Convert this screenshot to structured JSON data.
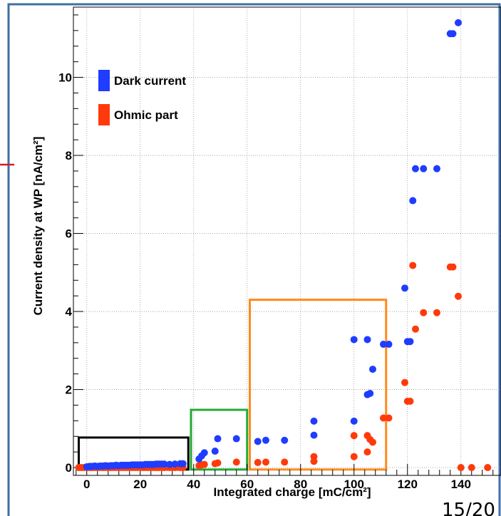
{
  "slide": {
    "page_number": "15/20"
  },
  "colors": {
    "frame": "#3f6fa3",
    "dark_current": "#1f3cff",
    "ohmic": "#ff3a0a",
    "red_line": "#d0202a",
    "black_box": "#000000",
    "green_box": "#22aa33",
    "orange_box": "#ff8a1c"
  },
  "chart_data": {
    "type": "scatter",
    "title": "",
    "xlabel": "Integrated charge [mC/cm²]",
    "ylabel": "Current density at WP [nA/cm²]",
    "xlim": [
      -5,
      155
    ],
    "ylim": [
      -0.2,
      11.8
    ],
    "xticks": [
      0,
      20,
      40,
      60,
      80,
      100,
      120,
      140
    ],
    "yticks": [
      0,
      2,
      4,
      6,
      8,
      10
    ],
    "grid": true,
    "legend_position": "top-left",
    "series": [
      {
        "name": "Dark current",
        "color": "#1f3cff",
        "points": [
          [
            0,
            0.02
          ],
          [
            1,
            0.03
          ],
          [
            2,
            0.03
          ],
          [
            3,
            0.04
          ],
          [
            4,
            0.03
          ],
          [
            5,
            0.04
          ],
          [
            6,
            0.04
          ],
          [
            7,
            0.05
          ],
          [
            8,
            0.04
          ],
          [
            9,
            0.05
          ],
          [
            10,
            0.05
          ],
          [
            11,
            0.06
          ],
          [
            12,
            0.05
          ],
          [
            13,
            0.06
          ],
          [
            14,
            0.06
          ],
          [
            15,
            0.06
          ],
          [
            16,
            0.06
          ],
          [
            17,
            0.07
          ],
          [
            18,
            0.07
          ],
          [
            19,
            0.07
          ],
          [
            20,
            0.07
          ],
          [
            21,
            0.07
          ],
          [
            22,
            0.08
          ],
          [
            23,
            0.08
          ],
          [
            24,
            0.08
          ],
          [
            25,
            0.08
          ],
          [
            26,
            0.09
          ],
          [
            27,
            0.09
          ],
          [
            28,
            0.09
          ],
          [
            29,
            0.09
          ],
          [
            31,
            0.08
          ],
          [
            33,
            0.09
          ],
          [
            35,
            0.1
          ],
          [
            36,
            0.1
          ],
          [
            42,
            0.22
          ],
          [
            43,
            0.3
          ],
          [
            44,
            0.38
          ],
          [
            48,
            0.42
          ],
          [
            49,
            0.74
          ],
          [
            56,
            0.74
          ],
          [
            64,
            0.67
          ],
          [
            67,
            0.7
          ],
          [
            74,
            0.7
          ],
          [
            85,
            0.83
          ],
          [
            85,
            1.19
          ],
          [
            100,
            1.19
          ],
          [
            100,
            3.28
          ],
          [
            105,
            3.28
          ],
          [
            105,
            1.87
          ],
          [
            106,
            1.9
          ],
          [
            107,
            2.52
          ],
          [
            111,
            3.16
          ],
          [
            113,
            3.16
          ],
          [
            119,
            4.6
          ],
          [
            120,
            3.23
          ],
          [
            121,
            3.23
          ],
          [
            122,
            6.84
          ],
          [
            123,
            7.66
          ],
          [
            126,
            7.66
          ],
          [
            131,
            7.66
          ],
          [
            136,
            11.12
          ],
          [
            137,
            11.12
          ],
          [
            139,
            11.4
          ]
        ]
      },
      {
        "name": "Ohmic part",
        "color": "#ff3a0a",
        "points": [
          [
            -3,
            0
          ],
          [
            -2,
            0
          ],
          [
            -1,
            0
          ],
          [
            0,
            0
          ],
          [
            1,
            0
          ],
          [
            2,
            0
          ],
          [
            3,
            0
          ],
          [
            4,
            0
          ],
          [
            5,
            0
          ],
          [
            6,
            0
          ],
          [
            7,
            0
          ],
          [
            8,
            0
          ],
          [
            9,
            0
          ],
          [
            10,
            0
          ],
          [
            11,
            0
          ],
          [
            12,
            0
          ],
          [
            13,
            0
          ],
          [
            14,
            0
          ],
          [
            15,
            0
          ],
          [
            16,
            0
          ],
          [
            17,
            0
          ],
          [
            18,
            0
          ],
          [
            19,
            0
          ],
          [
            20,
            0
          ],
          [
            21,
            0
          ],
          [
            22,
            0
          ],
          [
            23,
            0
          ],
          [
            24,
            0
          ],
          [
            25,
            0
          ],
          [
            26,
            0
          ],
          [
            27,
            0
          ],
          [
            28,
            0
          ],
          [
            29,
            0
          ],
          [
            31,
            0
          ],
          [
            32,
            0
          ],
          [
            33,
            0
          ],
          [
            35,
            0
          ],
          [
            36,
            0
          ],
          [
            42,
            0.05
          ],
          [
            43,
            0.07
          ],
          [
            44,
            0.08
          ],
          [
            48,
            0.1
          ],
          [
            49,
            0.12
          ],
          [
            56,
            0.14
          ],
          [
            64,
            0.13
          ],
          [
            67,
            0.14
          ],
          [
            74,
            0.14
          ],
          [
            85,
            0.16
          ],
          [
            85,
            0.28
          ],
          [
            100,
            0.28
          ],
          [
            100,
            0.82
          ],
          [
            105,
            0.82
          ],
          [
            105,
            0.4
          ],
          [
            106,
            0.72
          ],
          [
            107,
            0.65
          ],
          [
            111,
            1.27
          ],
          [
            113,
            1.27
          ],
          [
            119,
            2.18
          ],
          [
            120,
            1.7
          ],
          [
            121,
            1.7
          ],
          [
            122,
            5.18
          ],
          [
            123,
            3.55
          ],
          [
            126,
            3.97
          ],
          [
            131,
            3.97
          ],
          [
            136,
            5.14
          ],
          [
            137,
            5.14
          ],
          [
            139,
            4.39
          ],
          [
            140,
            0
          ],
          [
            144,
            0
          ],
          [
            150,
            0
          ]
        ]
      }
    ],
    "annotation_boxes": [
      {
        "color": "black",
        "x": [
          -3,
          38
        ],
        "y": [
          -0.05,
          0.77
        ]
      },
      {
        "color": "green",
        "x": [
          39,
          60
        ],
        "y": [
          -0.05,
          1.48
        ]
      },
      {
        "color": "orange",
        "x": [
          61,
          112
        ],
        "y": [
          -0.05,
          4.3
        ]
      }
    ]
  }
}
